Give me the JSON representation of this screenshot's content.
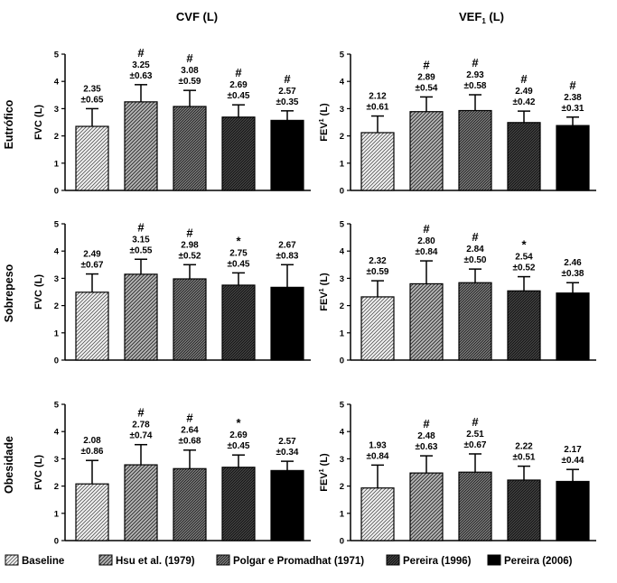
{
  "column_titles": [
    "CVF (L)",
    "VEF1 (L)"
  ],
  "row_titles": [
    "Eutrófico",
    "Sobrepeso",
    "Obesidade"
  ],
  "y_labels": [
    "FVC (L)",
    "FEV1 (L)"
  ],
  "legend": [
    {
      "label": "Baseline",
      "pattern": "hatch-light"
    },
    {
      "label": "Hsu et al. (1979)",
      "pattern": "hatch-medium"
    },
    {
      "label": "Polgar e Promadhat (1971)",
      "pattern": "hatch-dense"
    },
    {
      "label": "Pereira (1996)",
      "pattern": "hatch-dark"
    },
    {
      "label": "Pereira (2006)",
      "pattern": "solid-black"
    }
  ],
  "chart_data": [
    {
      "type": "bar",
      "row": "Eutrófico",
      "column": "CVF (L)",
      "ylabel": "FVC (L)",
      "ylim": [
        0,
        5
      ],
      "yticks": [
        0,
        1,
        2,
        3,
        4,
        5
      ],
      "categories": [
        "Baseline",
        "Hsu et al. (1979)",
        "Polgar e Promadhat (1971)",
        "Pereira (1996)",
        "Pereira (2006)"
      ],
      "values": [
        2.35,
        3.25,
        3.08,
        2.69,
        2.57
      ],
      "errors": [
        0.65,
        0.63,
        0.59,
        0.45,
        0.35
      ],
      "value_labels": [
        "2.35",
        "3.25",
        "3.08",
        "2.69",
        "2.57"
      ],
      "error_labels": [
        "±0.65",
        "±0.63",
        "±0.59",
        "±0.45",
        "±0.35"
      ],
      "marks": [
        "",
        "#",
        "#",
        "#",
        "#"
      ]
    },
    {
      "type": "bar",
      "row": "Eutrófico",
      "column": "VEF1 (L)",
      "ylabel": "FEV1 (L)",
      "ylim": [
        0,
        5
      ],
      "yticks": [
        0,
        1,
        2,
        3,
        4,
        5
      ],
      "categories": [
        "Baseline",
        "Hsu et al. (1979)",
        "Polgar e Promadhat (1971)",
        "Pereira (1996)",
        "Pereira (2006)"
      ],
      "values": [
        2.12,
        2.89,
        2.93,
        2.49,
        2.38
      ],
      "errors": [
        0.61,
        0.54,
        0.58,
        0.42,
        0.31
      ],
      "value_labels": [
        "2.12",
        "2.89",
        "2.93",
        "2.49",
        "2.38"
      ],
      "error_labels": [
        "±0.61",
        "±0.54",
        "±0.58",
        "±0.42",
        "±0.31"
      ],
      "marks": [
        "",
        "#",
        "#",
        "#",
        "#"
      ]
    },
    {
      "type": "bar",
      "row": "Sobrepeso",
      "column": "CVF (L)",
      "ylabel": "FVC (L)",
      "ylim": [
        0,
        5
      ],
      "yticks": [
        0,
        1,
        2,
        3,
        4,
        5
      ],
      "categories": [
        "Baseline",
        "Hsu et al. (1979)",
        "Polgar e Promadhat (1971)",
        "Pereira (1996)",
        "Pereira (2006)"
      ],
      "values": [
        2.49,
        3.15,
        2.98,
        2.75,
        2.67
      ],
      "errors": [
        0.67,
        0.55,
        0.52,
        0.45,
        0.83
      ],
      "value_labels": [
        "2.49",
        "3.15",
        "2.98",
        "2.75",
        "2.67"
      ],
      "error_labels": [
        "±0.67",
        "±0.55",
        "±0.52",
        "±0.45",
        "±0.83"
      ],
      "marks": [
        "",
        "#",
        "#",
        "*",
        ""
      ]
    },
    {
      "type": "bar",
      "row": "Sobrepeso",
      "column": "VEF1 (L)",
      "ylabel": "FEV1 (L)",
      "ylim": [
        0,
        5
      ],
      "yticks": [
        0,
        1,
        2,
        3,
        4,
        5
      ],
      "categories": [
        "Baseline",
        "Hsu et al. (1979)",
        "Polgar e Promadhat (1971)",
        "Pereira (1996)",
        "Pereira (2006)"
      ],
      "values": [
        2.32,
        2.8,
        2.84,
        2.54,
        2.46
      ],
      "errors": [
        0.59,
        0.84,
        0.5,
        0.52,
        0.38
      ],
      "value_labels": [
        "2.32",
        "2.80",
        "2.84",
        "2.54",
        "2.46"
      ],
      "error_labels": [
        "±0.59",
        "±0.84",
        "±0.50",
        "±0.52",
        "±0.38"
      ],
      "marks": [
        "",
        "#",
        "#",
        "*",
        ""
      ]
    },
    {
      "type": "bar",
      "row": "Obesidade",
      "column": "CVF (L)",
      "ylabel": "FVC (L)",
      "ylim": [
        0,
        5
      ],
      "yticks": [
        0,
        1,
        2,
        3,
        4,
        5
      ],
      "categories": [
        "Baseline",
        "Hsu et al. (1979)",
        "Polgar e Promadhat (1971)",
        "Pereira (1996)",
        "Pereira (2006)"
      ],
      "values": [
        2.08,
        2.78,
        2.64,
        2.69,
        2.57
      ],
      "errors": [
        0.86,
        0.74,
        0.68,
        0.45,
        0.34
      ],
      "value_labels": [
        "2.08",
        "2.78",
        "2.64",
        "2.69",
        "2.57"
      ],
      "error_labels": [
        "±0.86",
        "±0.74",
        "±0.68",
        "±0.45",
        "±0.34"
      ],
      "marks": [
        "",
        "#",
        "#",
        "*",
        ""
      ]
    },
    {
      "type": "bar",
      "row": "Obesidade",
      "column": "VEF1 (L)",
      "ylabel": "FEV1 (L)",
      "ylim": [
        0,
        5
      ],
      "yticks": [
        0,
        1,
        2,
        3,
        4,
        5
      ],
      "categories": [
        "Baseline",
        "Hsu et al. (1979)",
        "Polgar e Promadhat (1971)",
        "Pereira (1996)",
        "Pereira (2006)"
      ],
      "values": [
        1.93,
        2.48,
        2.51,
        2.22,
        2.17
      ],
      "errors": [
        0.84,
        0.63,
        0.67,
        0.51,
        0.44
      ],
      "value_labels": [
        "1.93",
        "2.48",
        "2.51",
        "2.22",
        "2.17"
      ],
      "error_labels": [
        "±0.84",
        "±0.63",
        "±0.67",
        "±0.51",
        "±0.44"
      ],
      "marks": [
        "",
        "#",
        "#",
        "",
        ""
      ]
    }
  ]
}
